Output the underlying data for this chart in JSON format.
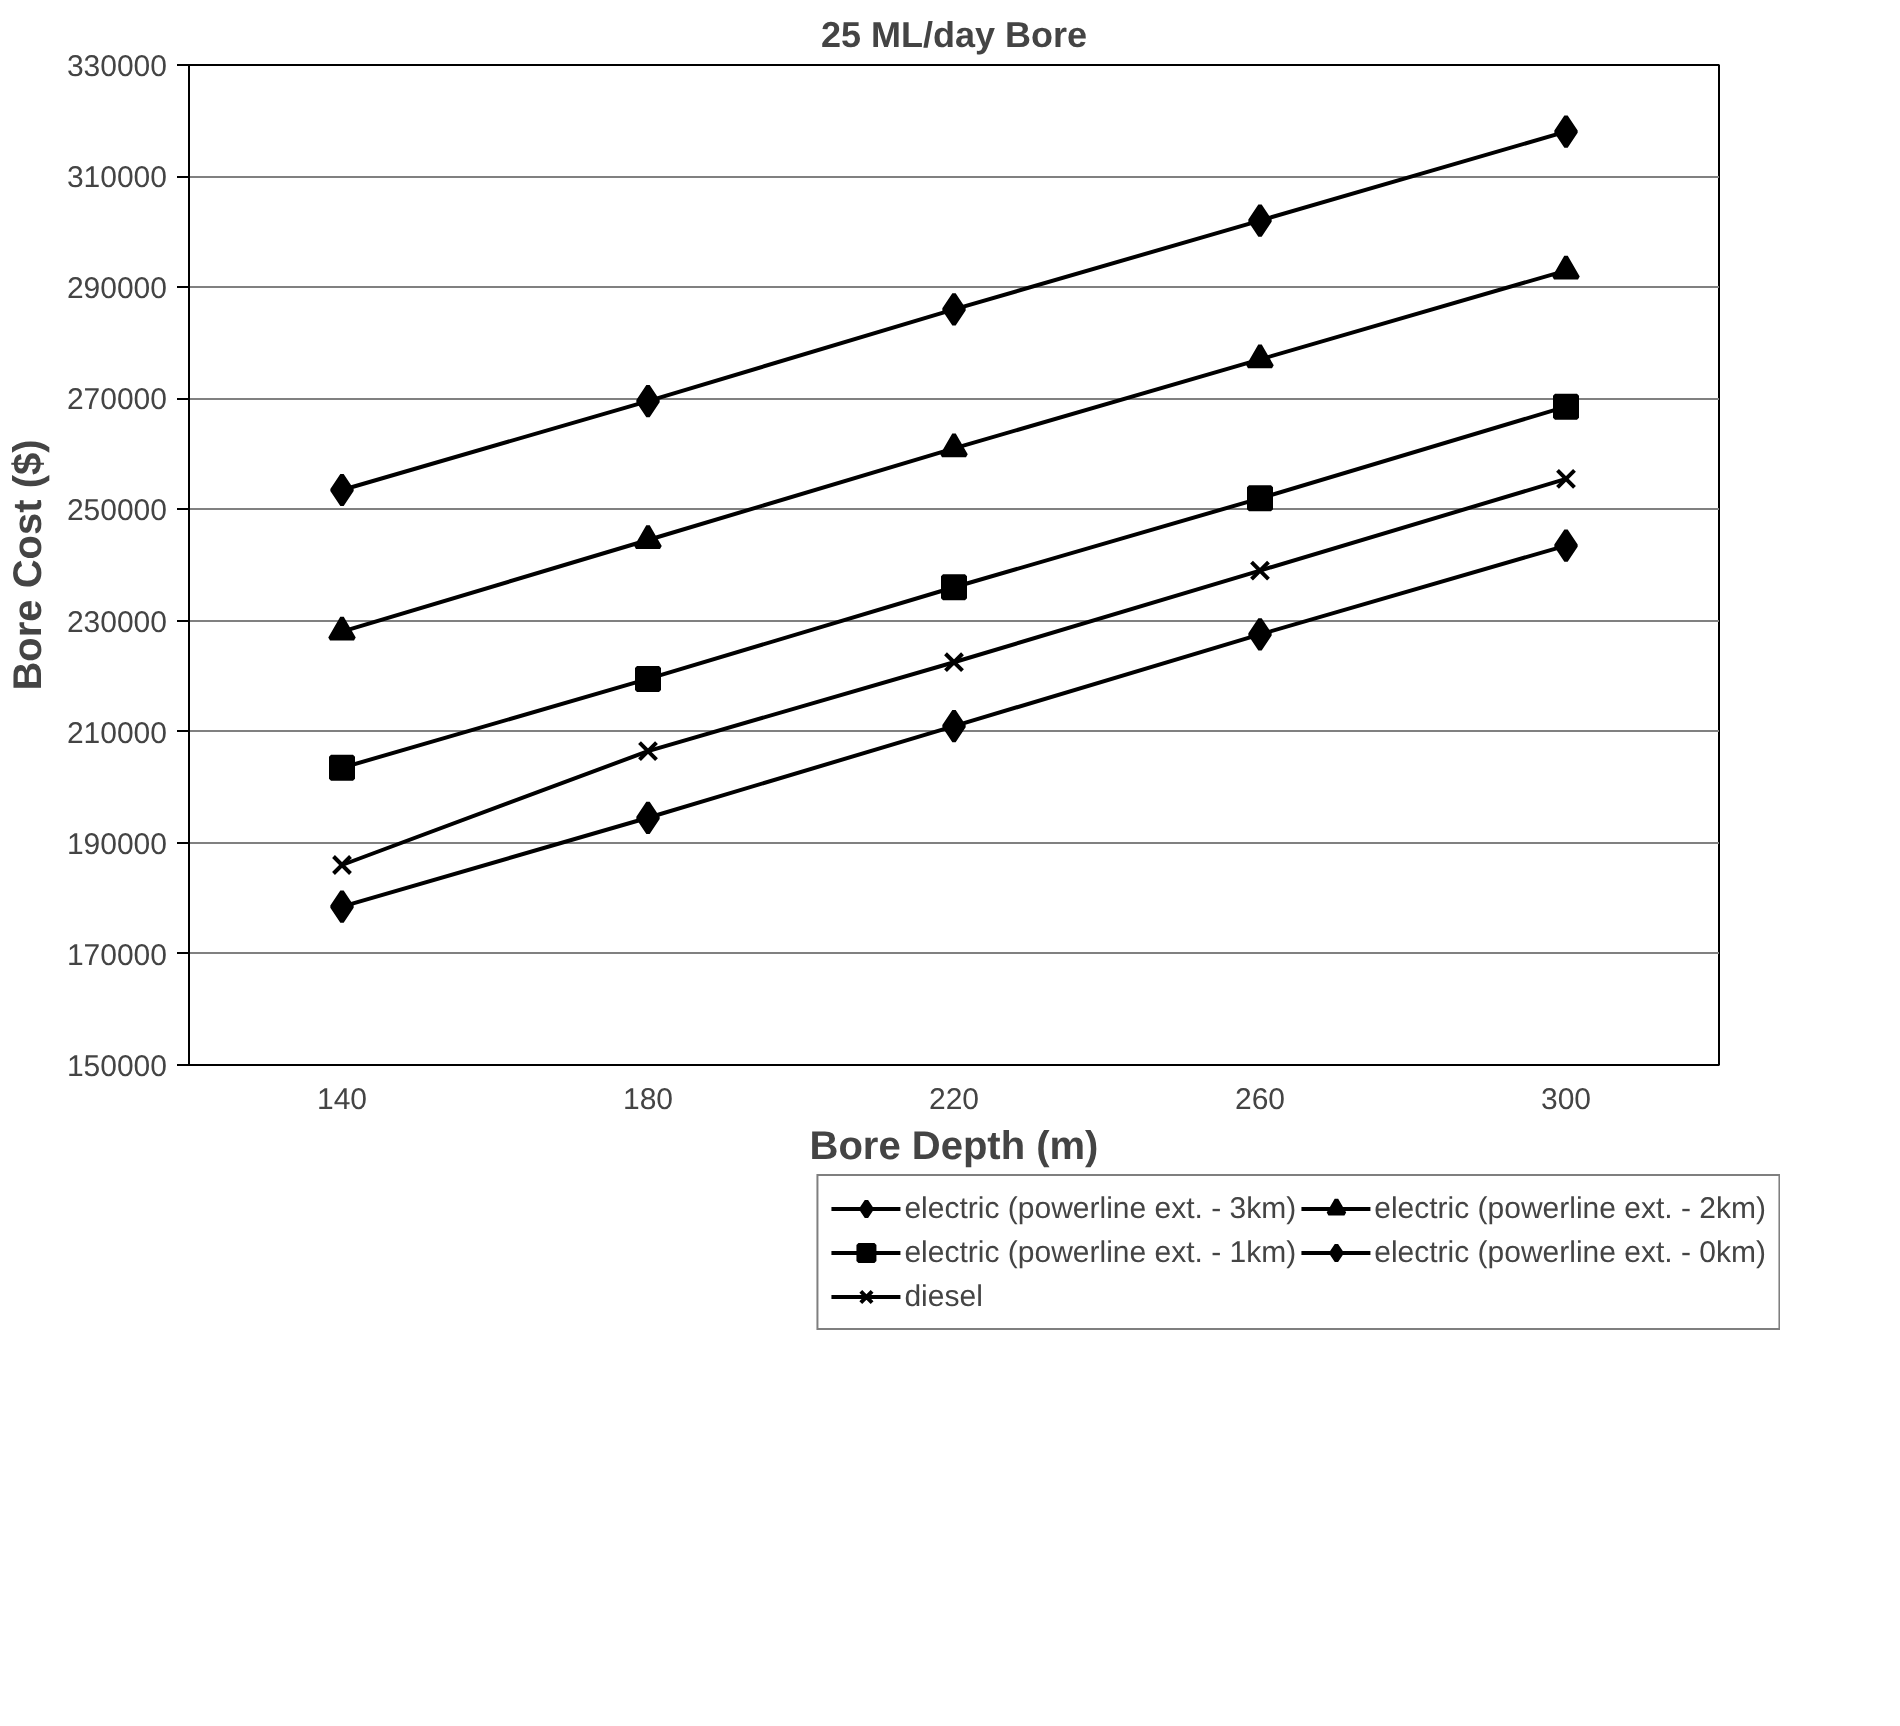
{
  "chart_data": {
    "type": "line",
    "title": "25 ML/day Bore",
    "xlabel": "Bore Depth (m)",
    "ylabel": "Bore Cost ($)",
    "categories": [
      "140",
      "180",
      "220",
      "260",
      "300"
    ],
    "ylim": [
      150000,
      330000
    ],
    "yticks": [
      150000,
      170000,
      190000,
      210000,
      230000,
      250000,
      270000,
      290000,
      310000,
      330000
    ],
    "grid": "y",
    "legend": "bottom",
    "line_style": "solid",
    "series": [
      {
        "name": "electric (powerline ext. - 3km)",
        "color": "#000000",
        "marker": "diamond",
        "values": [
          253500,
          269500,
          286000,
          302000,
          318000
        ]
      },
      {
        "name": "electric (powerline ext. - 2km)",
        "color": "#000000",
        "marker": "triangle",
        "values": [
          228000,
          244500,
          261000,
          277000,
          293000
        ]
      },
      {
        "name": "electric (powerline ext. - 1km)",
        "color": "#000000",
        "marker": "square",
        "values": [
          203500,
          219500,
          236000,
          252000,
          268500
        ]
      },
      {
        "name": "electric (powerline ext. - 0km)",
        "color": "#000000",
        "marker": "diamond",
        "values": [
          178500,
          194500,
          211000,
          227500,
          243500
        ]
      },
      {
        "name": "diesel",
        "color": "#000000",
        "marker": "cross",
        "values": [
          186000,
          206500,
          222500,
          239000,
          255500
        ]
      }
    ]
  }
}
